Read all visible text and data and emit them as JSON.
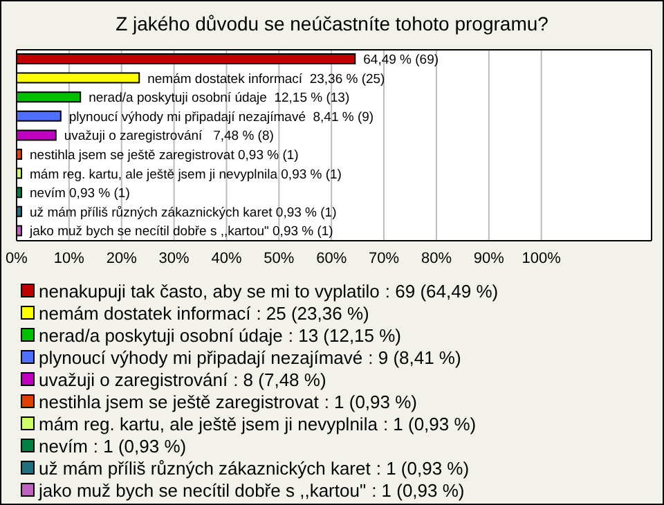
{
  "chart_data": {
    "type": "bar",
    "orientation": "horizontal",
    "stacked": true,
    "title": "Z jakého důvodu se neúčastníte tohoto programu?",
    "categories": [
      null,
      null,
      null,
      null,
      null,
      null,
      null,
      null,
      null,
      null
    ],
    "series": [
      {
        "name": "nenakupuji tak často, aby se mi to vyplatilo",
        "color": "#c00000",
        "values": [
          64.49,
          null,
          null,
          null,
          null,
          null,
          null,
          null,
          null,
          null
        ],
        "value_labels": [
          "64,49 % (69)",
          null,
          null,
          null,
          null,
          null,
          null,
          null,
          null,
          null
        ]
      },
      {
        "name": "nemám dostatek informací",
        "color": "#ffff00",
        "values": [
          null,
          23.36,
          null,
          null,
          null,
          null,
          null,
          null,
          null,
          null
        ],
        "value_labels": [
          null,
          "nemám dostatek informací  23,36 % (25)",
          null,
          null,
          null,
          null,
          null,
          null,
          null,
          null
        ]
      },
      {
        "name": "nerad/a poskytuji osobní údaje",
        "color": "#00c000",
        "values": [
          null,
          null,
          12.15,
          null,
          null,
          null,
          null,
          null,
          null,
          null
        ],
        "value_labels": [
          null,
          null,
          "nerad/a poskytuji osobní údaje  12,15 % (13)",
          null,
          null,
          null,
          null,
          null,
          null,
          null
        ]
      },
      {
        "name": "plynoucí výhody mi připadají nezajímavé",
        "color": "#4f6fff",
        "values": [
          null,
          null,
          null,
          8.41,
          null,
          null,
          null,
          null,
          null,
          null
        ],
        "value_labels": [
          null,
          null,
          null,
          "plynoucí výhody mi připadají nezajímavé  8,41 % (9)",
          null,
          null,
          null,
          null,
          null,
          null
        ]
      },
      {
        "name": "uvažuji o zaregistrování",
        "color": "#c000c0",
        "values": [
          null,
          null,
          null,
          null,
          7.48,
          null,
          null,
          null,
          null,
          null
        ],
        "value_labels": [
          null,
          null,
          null,
          null,
          "uvažuji o zaregistrování   7,48 % (8)",
          null,
          null,
          null,
          null,
          null
        ]
      },
      {
        "name": "nestihla jsem se ještě zaregistrovat",
        "color": "#e04000",
        "values": [
          null,
          null,
          null,
          null,
          null,
          0.93,
          null,
          null,
          null,
          null
        ],
        "value_labels": [
          null,
          null,
          null,
          null,
          null,
          "nestihla jsem se ještě zaregistrovat 0,93 % (1)",
          null,
          null,
          null,
          null
        ]
      },
      {
        "name": "mám reg. kartu, ale ještě jsem ji nevyplnila",
        "color": "#ccff66",
        "values": [
          null,
          null,
          null,
          null,
          null,
          null,
          0.93,
          null,
          null,
          null
        ],
        "value_labels": [
          null,
          null,
          null,
          null,
          null,
          null,
          "mám reg. kartu, ale ještě jsem ji nevyplnila 0,93 % (1)",
          null,
          null,
          null
        ]
      },
      {
        "name": "nevím",
        "color": "#008040",
        "values": [
          null,
          null,
          null,
          null,
          null,
          null,
          null,
          0.93,
          null,
          null
        ],
        "value_labels": [
          null,
          null,
          null,
          null,
          null,
          null,
          null,
          "nevím 0,93 % (1)",
          null,
          null
        ]
      },
      {
        "name": "už mám příliš různých zákaznických karet",
        "color": "#207080",
        "values": [
          null,
          null,
          null,
          null,
          null,
          null,
          null,
          null,
          0.93,
          null
        ],
        "value_labels": [
          null,
          null,
          null,
          null,
          null,
          null,
          null,
          null,
          "už mám příliš různých zákaznických karet 0,93 % (1)",
          null
        ]
      },
      {
        "name": "jako muž bych se necítil dobře s ,,kartou\"",
        "color": "#c060c0",
        "values": [
          null,
          null,
          null,
          null,
          null,
          null,
          null,
          null,
          null,
          0.93
        ],
        "value_labels": [
          null,
          null,
          null,
          null,
          null,
          null,
          null,
          null,
          null,
          "jako muž bych se necítil dobře s ,,kartou\" 0,93 % (1)"
        ]
      }
    ],
    "annotations": [
      ": 69 (64,49 %)",
      ": 25 (23,36 %)",
      ": 13 (12,15 %)",
      ": 9 (8,41 %)",
      ": 8 (7,48 %)",
      ": 1 (0,93 %)",
      ": 1 (0,93 %)",
      ": 1 (0,93 %)",
      ": 1 (0,93 %)",
      ": 1 (0,93 %)"
    ],
    "xlim": [
      0,
      121
    ],
    "xticks": [
      {
        "value": 0,
        "label": "0%"
      },
      {
        "value": 10,
        "label": "10%"
      },
      {
        "value": 20,
        "label": "20%"
      },
      {
        "value": 30,
        "label": "30%"
      },
      {
        "value": 40,
        "label": "40%"
      },
      {
        "value": 50,
        "label": "50%"
      },
      {
        "value": 60,
        "label": "60%"
      },
      {
        "value": 70,
        "label": "70%"
      },
      {
        "value": 80,
        "label": "80%"
      },
      {
        "value": 90,
        "label": "90%"
      },
      {
        "value": 100,
        "label": "100%"
      }
    ],
    "grid": "x",
    "legend": "bottom",
    "tick_labels": "x"
  }
}
